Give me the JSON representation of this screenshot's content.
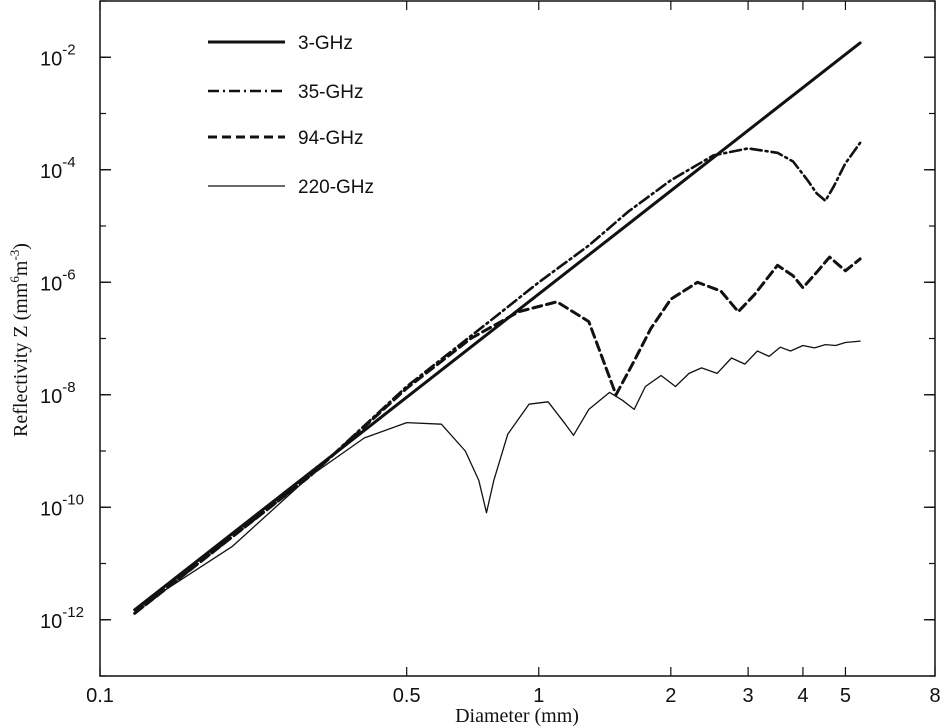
{
  "chart_data": {
    "type": "line",
    "xlabel": "Diameter (mm)",
    "ylabel": "Reflectivity Z (mm",
    "ylabel_unit_exp1": "6",
    "ylabel_unit_mid": "m",
    "ylabel_unit_exp2": "-3",
    "ylabel_close": ")",
    "x_scale": "log",
    "y_scale": "log",
    "xlim": [
      0.1,
      8
    ],
    "ylim": [
      1e-13,
      0.1
    ],
    "x_ticks": [
      0.1,
      0.5,
      1,
      2,
      3,
      4,
      5,
      8
    ],
    "x_tick_labels": [
      "0.1",
      "0.5",
      "1",
      "2",
      "3",
      "4",
      "5",
      "8"
    ],
    "y_ticks": [
      1e-12,
      1e-10,
      1e-08,
      1e-06,
      0.0001,
      0.01
    ],
    "y_tick_base": "10",
    "y_tick_exponents": [
      "-12",
      "-10",
      "-8",
      "-6",
      "-4",
      "-2"
    ],
    "grid": false,
    "legend_position": "top-left",
    "series": [
      {
        "name": "3-GHz",
        "style": "thick-solid",
        "x": [
          0.12,
          5.4
        ],
        "y": [
          1.5e-12,
          0.018
        ]
      },
      {
        "name": "35-GHz",
        "style": "dash-dot",
        "x": [
          0.12,
          0.3,
          0.5,
          0.8,
          1.0,
          1.3,
          1.6,
          2.0,
          2.5,
          3.0,
          3.5,
          3.8,
          4.1,
          4.3,
          4.5,
          4.7,
          5.0,
          5.4
        ],
        "y": [
          1.3e-12,
          3.5e-10,
          1.4e-08,
          2.5e-07,
          1e-06,
          4.5e-06,
          1.8e-05,
          6.5e-05,
          0.00018,
          0.00024,
          0.0002,
          0.00014,
          6.5e-05,
          3.8e-05,
          2.8e-05,
          5e-05,
          0.00013,
          0.0003
        ]
      },
      {
        "name": "94-GHz",
        "style": "dashed",
        "x": [
          0.12,
          0.3,
          0.5,
          0.7,
          0.9,
          1.1,
          1.3,
          1.5,
          1.65,
          1.8,
          2.0,
          2.3,
          2.6,
          2.85,
          3.1,
          3.5,
          3.8,
          4.0,
          4.3,
          4.6,
          5.0,
          5.4
        ],
        "y": [
          1.3e-12,
          3.5e-10,
          1.3e-08,
          1e-07,
          3e-07,
          4.5e-07,
          2e-07,
          1e-08,
          4e-08,
          1.5e-07,
          5e-07,
          1e-06,
          7e-07,
          3e-07,
          6e-07,
          2e-06,
          1.3e-06,
          8e-07,
          1.5e-06,
          2.8e-06,
          1.6e-06,
          2.6e-06
        ]
      },
      {
        "name": "220-GHz",
        "style": "thin-solid",
        "x": [
          0.12,
          0.2,
          0.3,
          0.4,
          0.5,
          0.6,
          0.68,
          0.73,
          0.76,
          0.79,
          0.85,
          0.95,
          1.05,
          1.15,
          1.2,
          1.3,
          1.45,
          1.55,
          1.65,
          1.75,
          1.9,
          2.05,
          2.2,
          2.35,
          2.55,
          2.75,
          2.95,
          3.15,
          3.35,
          3.55,
          3.75,
          4.0,
          4.25,
          4.5,
          4.75,
          5.0,
          5.4
        ],
        "y": [
          1.5e-12,
          2e-11,
          3.5e-10,
          1.7e-09,
          3.2e-09,
          3e-09,
          1e-09,
          3e-10,
          8e-11,
          3e-10,
          2e-09,
          6.8e-09,
          7.5e-09,
          3e-09,
          1.9e-09,
          5.5e-09,
          1.1e-08,
          8e-09,
          5.5e-09,
          1.4e-08,
          2.2e-08,
          1.4e-08,
          2.4e-08,
          3e-08,
          2.4e-08,
          4.5e-08,
          3.5e-08,
          6e-08,
          4.8e-08,
          7e-08,
          6e-08,
          7.5e-08,
          6.8e-08,
          7.8e-08,
          7.5e-08,
          8.5e-08,
          9e-08
        ]
      }
    ]
  }
}
